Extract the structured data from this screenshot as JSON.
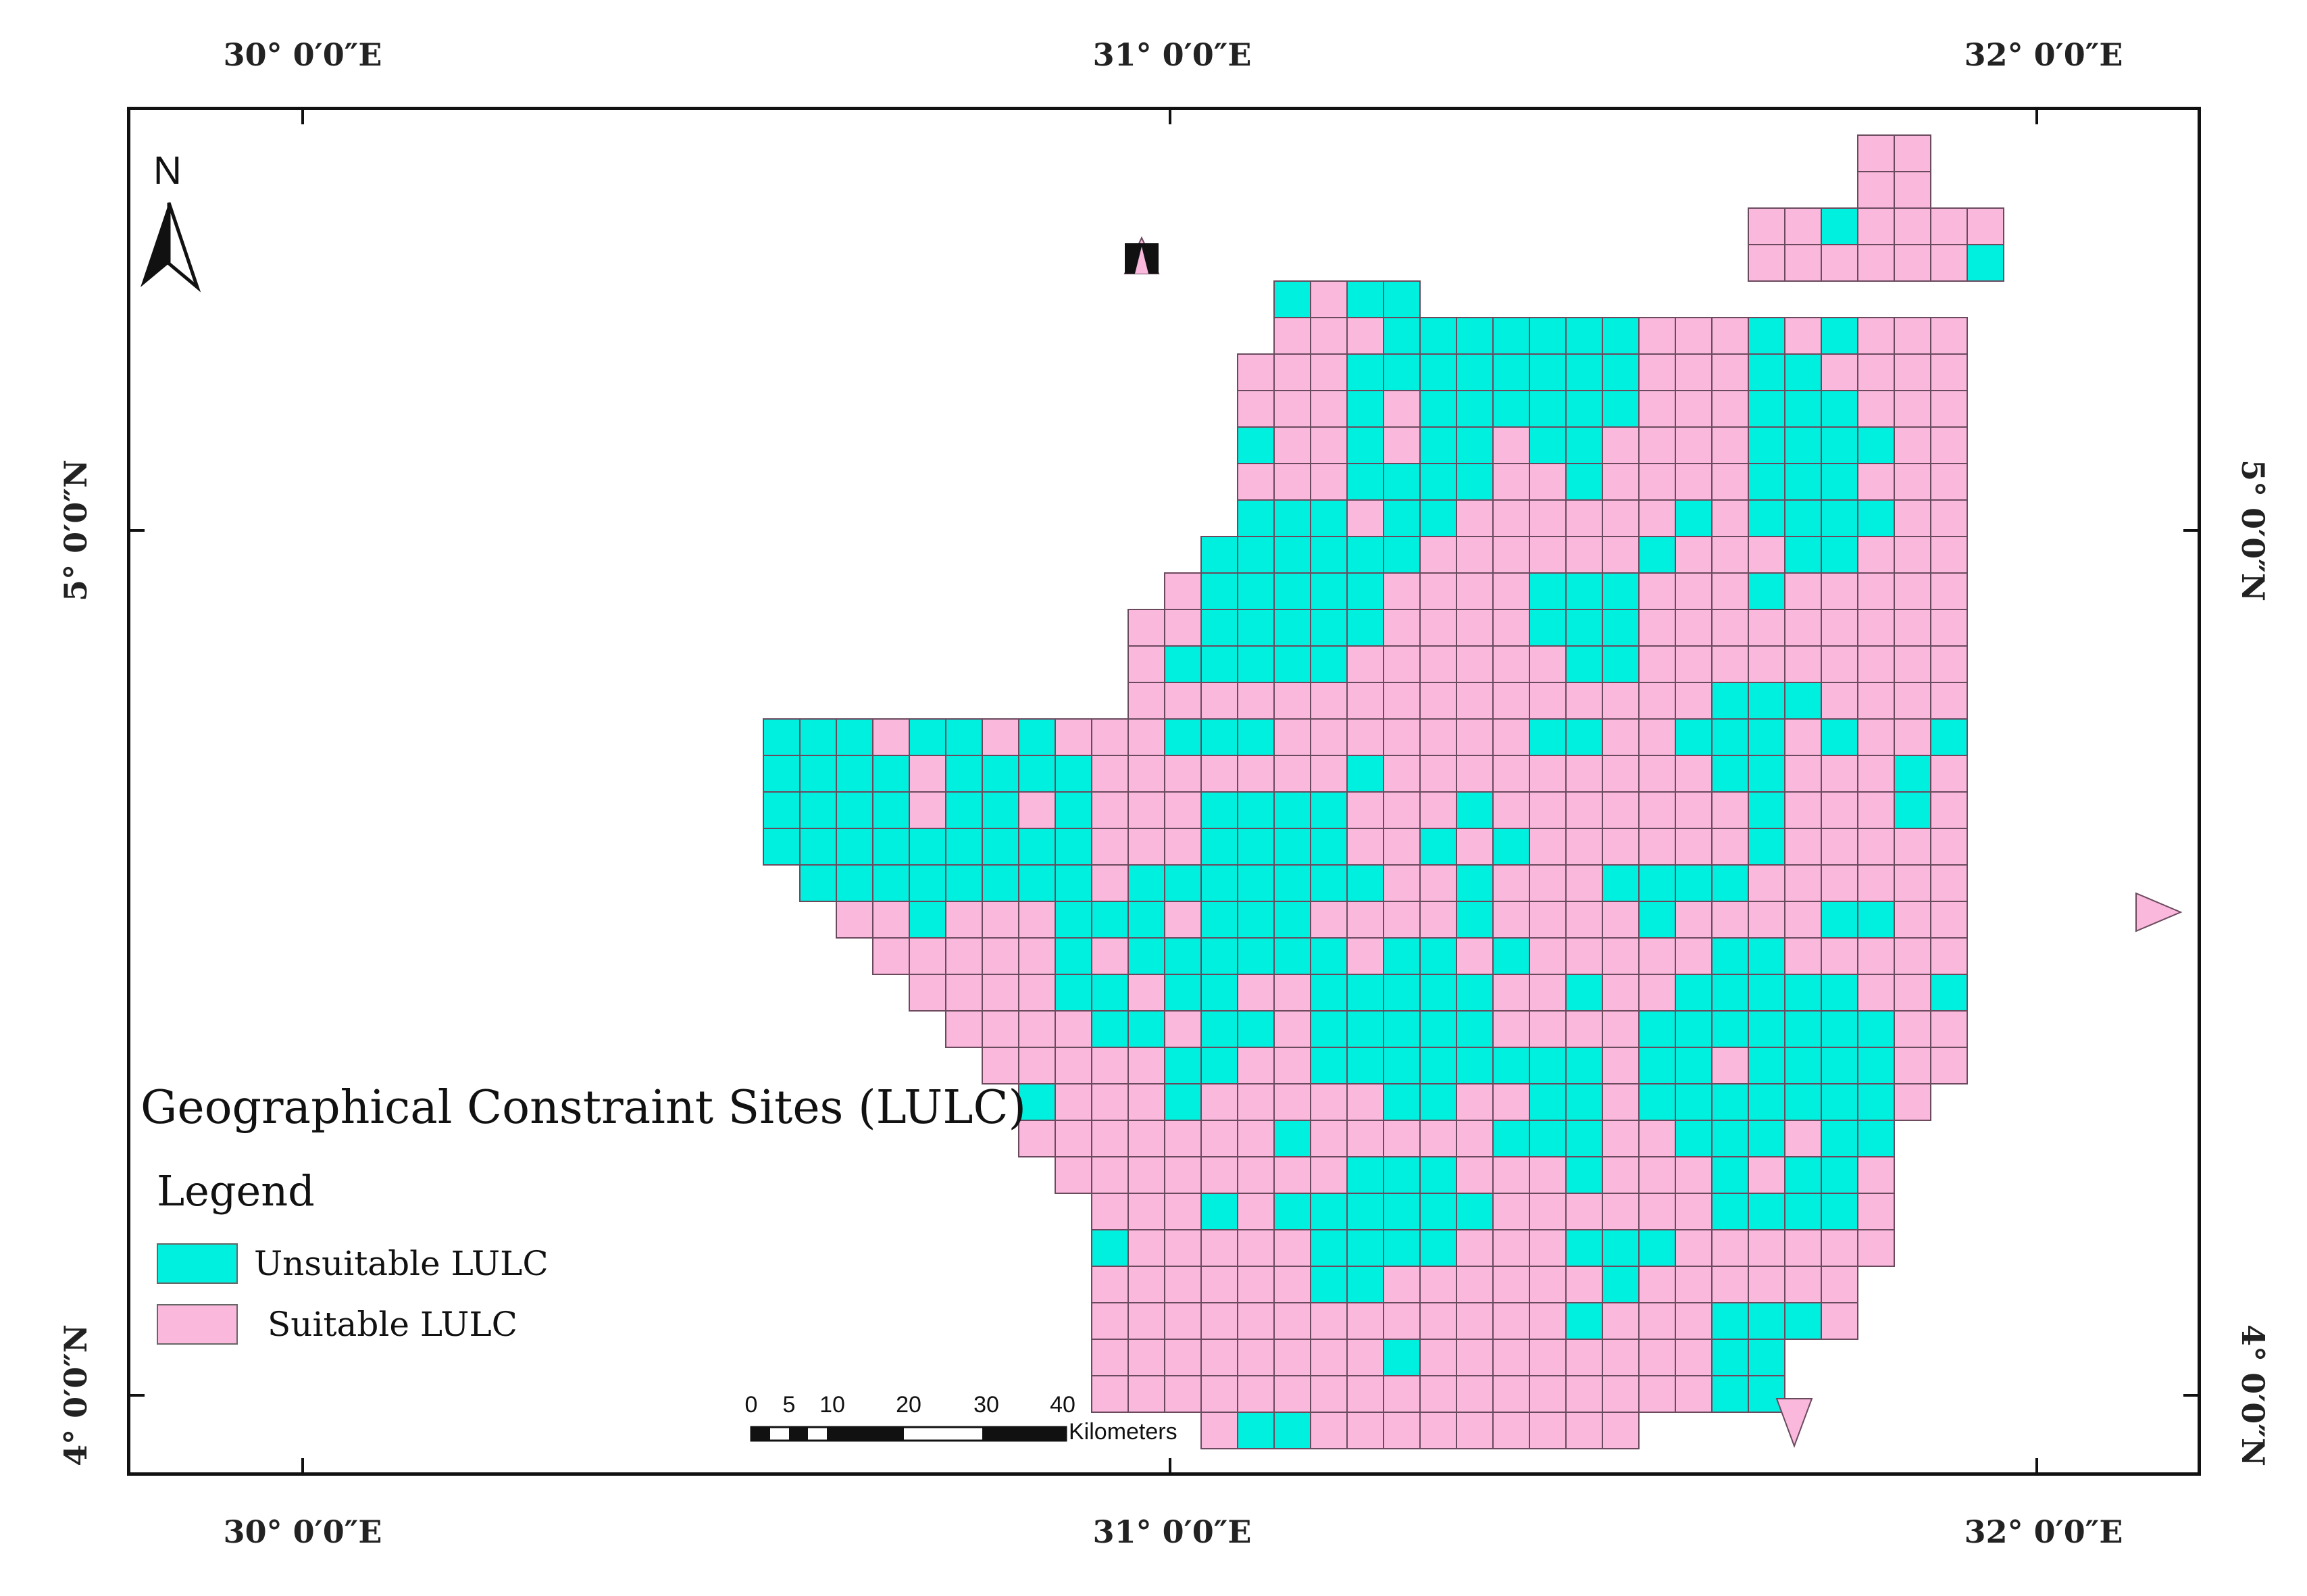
{
  "map": {
    "title": "Geographical Constraint Sites (LULC)",
    "legend_title": "Legend",
    "legend": [
      {
        "label": "Unsuitable LULC",
        "color": "#00f0e0"
      },
      {
        "label": "Suitable LULC",
        "color": "#f9b8dc"
      }
    ],
    "north_label": "N",
    "longitude_labels": [
      "30° 0′0″E",
      "31° 0′0″E",
      "32° 0′0″E"
    ],
    "latitude_labels": [
      "5° 0′0″N",
      "4° 0′0″N"
    ],
    "scale_bar": {
      "ticks": [
        "0",
        "5",
        "10",
        "20",
        "30",
        "40"
      ],
      "unit": "Kilometers"
    },
    "colors": {
      "unsuitable": "#00f0e0",
      "suitable": "#f9b8dc",
      "grid_line": "#6b4a5e"
    }
  }
}
